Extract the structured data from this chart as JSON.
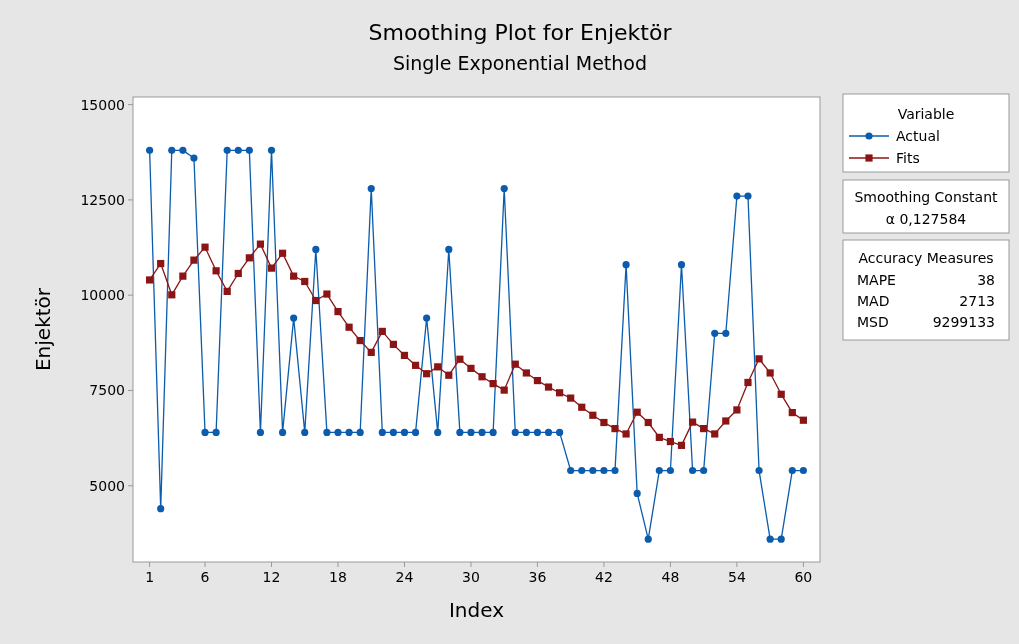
{
  "chart_data": {
    "type": "line",
    "title": "Smoothing Plot for Enjektör",
    "subtitle": "Single Exponential Method",
    "xlabel": "Index",
    "ylabel": "Enjektör",
    "legend_title": "Variable",
    "x": [
      1,
      2,
      3,
      4,
      5,
      6,
      7,
      8,
      9,
      10,
      11,
      12,
      13,
      14,
      15,
      16,
      17,
      18,
      19,
      20,
      21,
      22,
      23,
      24,
      25,
      26,
      27,
      28,
      29,
      30,
      31,
      32,
      33,
      34,
      35,
      36,
      37,
      38,
      39,
      40,
      41,
      42,
      43,
      44,
      45,
      46,
      47,
      48,
      49,
      50,
      51,
      52,
      53,
      54,
      55,
      56,
      57,
      58,
      59,
      60
    ],
    "series": [
      {
        "name": "Actual",
        "color": "#0b5cad",
        "marker": "circle",
        "values": [
          13800,
          4400,
          13800,
          13800,
          13600,
          6400,
          6400,
          13800,
          13800,
          13800,
          6400,
          13800,
          6400,
          9400,
          6400,
          11200,
          6400,
          6400,
          6400,
          6400,
          12800,
          6400,
          6400,
          6400,
          6400,
          9400,
          6400,
          11200,
          6400,
          6400,
          6400,
          6400,
          12800,
          6400,
          6400,
          6400,
          6400,
          6400,
          5400,
          5400,
          5400,
          5400,
          5400,
          10800,
          4800,
          3600,
          5400,
          5400,
          10800,
          5400,
          5400,
          9000,
          9000,
          12600,
          12600,
          5400,
          3600,
          3600,
          5400,
          5400
        ]
      },
      {
        "name": "Fits",
        "color": "#8b1414",
        "marker": "square",
        "values": [
          10400,
          10830,
          10010,
          10500,
          10920,
          11260,
          10640,
          10100,
          10570,
          10980,
          11340,
          10710,
          11100,
          10500,
          10360,
          9860,
          10030,
          9570,
          9160,
          8810,
          8500,
          9050,
          8710,
          8420,
          8160,
          7940,
          8120,
          7900,
          8320,
          8080,
          7860,
          7680,
          7510,
          8190,
          7960,
          7760,
          7590,
          7440,
          7300,
          7060,
          6850,
          6660,
          6500,
          6360,
          6930,
          6660,
          6270,
          6160,
          6060,
          6670,
          6500,
          6360,
          6700,
          6990,
          7710,
          8330,
          7960,
          7400,
          6920,
          6720
        ]
      }
    ],
    "xlim": [
      -0.5,
      61.5
    ],
    "xticks": [
      1,
      6,
      12,
      18,
      24,
      30,
      36,
      42,
      48,
      54,
      60
    ],
    "ylim": [
      3000,
      15200
    ],
    "yticks": [
      5000,
      7500,
      10000,
      12500,
      15000
    ],
    "grid": false,
    "legend": "right",
    "line_style": "solid",
    "annotations": [
      "Smoothing Constant",
      "α 0,127584",
      "Accuracy Measures",
      "MAPE",
      "38",
      "MAD",
      "2713",
      "MSD",
      "9299133"
    ]
  }
}
